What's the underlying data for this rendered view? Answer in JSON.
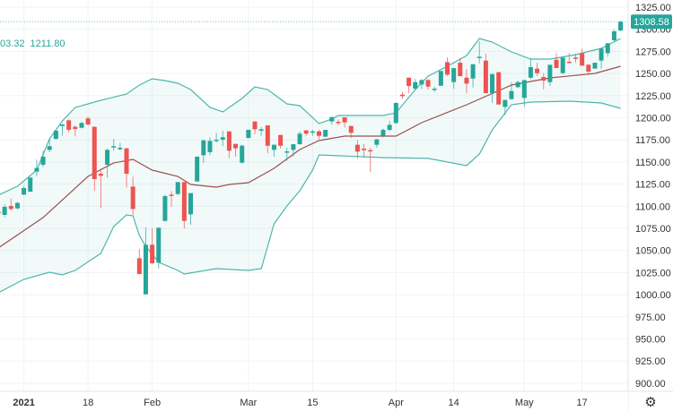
{
  "legend": {
    "value_a": "03.32",
    "value_b": "1211.80"
  },
  "settings_icon": "gear-icon",
  "chart_data": {
    "type": "candlestick",
    "colors": {
      "up": "#26a69a",
      "down": "#ef5350",
      "band": "#4db6ac",
      "band_fill": "#26a69a",
      "basis": "#9c4f4f",
      "last_price": "#26a69a"
    },
    "ylim": [
      890,
      1335
    ],
    "y_ticks": [
      900,
      925,
      950,
      975,
      1000,
      1025,
      1050,
      1075,
      1100,
      1125,
      1150,
      1175,
      1200,
      1225,
      1250,
      1275,
      1300,
      1325
    ],
    "x_ticks": [
      {
        "label": "2021",
        "bar": 4,
        "bold": true
      },
      {
        "label": "18",
        "bar": 14
      },
      {
        "label": "Feb",
        "bar": 24
      },
      {
        "label": "Mar",
        "bar": 39
      },
      {
        "label": "15",
        "bar": 49
      },
      {
        "label": "Apr",
        "bar": 62
      },
      {
        "label": "14",
        "bar": 71
      },
      {
        "label": "May",
        "bar": 82
      },
      {
        "label": "17",
        "bar": 91
      }
    ],
    "last_price": "1308.58",
    "last_price_value": 1308.58,
    "grid": true,
    "ohlc": [
      [
        1094.2,
        1096,
        1090,
        1091.5
      ],
      [
        1090.2,
        1102,
        1087.5,
        1099.3
      ],
      [
        1100.3,
        1108.7,
        1095.2,
        1096.9
      ],
      [
        1097.6,
        1105,
        1096.2,
        1103.7
      ],
      [
        1113.1,
        1123,
        1112.4,
        1120.5
      ],
      [
        1116.5,
        1133.4,
        1116,
        1132.3
      ],
      [
        1139.1,
        1152.6,
        1134,
        1143.2
      ],
      [
        1146.9,
        1162.7,
        1144.2,
        1156
      ],
      [
        1163.7,
        1176.2,
        1161,
        1167.8
      ],
      [
        1176.2,
        1186.3,
        1175.2,
        1185.3
      ],
      [
        1190.7,
        1193.1,
        1179.6,
        1192.4
      ],
      [
        1197.1,
        1198.2,
        1183,
        1186.3
      ],
      [
        1189.7,
        1191.4,
        1178.9,
        1187.3
      ],
      [
        1188.7,
        1195.4,
        1188,
        1194.1
      ],
      [
        1199.2,
        1201.5,
        1191.4,
        1192.4
      ],
      [
        1189.7,
        1190.4,
        1117.2,
        1130.7
      ],
      [
        1136.7,
        1142.5,
        1097.6,
        1134.4
      ],
      [
        1146.9,
        1165,
        1132.3,
        1163.7
      ],
      [
        1166.8,
        1176.2,
        1162.7,
        1167.8
      ],
      [
        1164.4,
        1171.8,
        1162.7,
        1166.1
      ],
      [
        1165.4,
        1166,
        1121.2,
        1136.7
      ],
      [
        1122.2,
        1133.4,
        1090.2,
        1096.9
      ],
      [
        1041.2,
        1051.4,
        1023,
        1023.4
      ],
      [
        1000.4,
        1076,
        1000.4,
        1056.4
      ],
      [
        1056.4,
        1075,
        1034.5,
        1035.5
      ],
      [
        1036.2,
        1075.7,
        1029.4,
        1075.7
      ],
      [
        1083.4,
        1113,
        1082.4,
        1111.4
      ],
      [
        1113.1,
        1117.2,
        1099.3,
        1111.8
      ],
      [
        1113.8,
        1127.3,
        1112.1,
        1127.3
      ],
      [
        1127.3,
        1127.3,
        1075,
        1083.4
      ],
      [
        1090.8,
        1114.8,
        1079,
        1114.8
      ],
      [
        1128,
        1156,
        1127.3,
        1156
      ],
      [
        1157.6,
        1175,
        1148.9,
        1174.5
      ],
      [
        1161,
        1177.9,
        1157.6,
        1173.8
      ],
      [
        1173.8,
        1183,
        1172,
        1175.2
      ],
      [
        1175.2,
        1185.3,
        1167.8,
        1177.9
      ],
      [
        1184.6,
        1184.6,
        1154.3,
        1162.7
      ],
      [
        1170.5,
        1170.5,
        1156,
        1165.4
      ],
      [
        1149.2,
        1169.5,
        1148.2,
        1168.5
      ],
      [
        1177.2,
        1186.3,
        1176.5,
        1186.3
      ],
      [
        1195.8,
        1195.8,
        1181.3,
        1187
      ],
      [
        1185.3,
        1189.7,
        1179.6,
        1187
      ],
      [
        1191.4,
        1191.4,
        1160,
        1168.4
      ],
      [
        1163.7,
        1169.5,
        1156,
        1169.5
      ],
      [
        1180.6,
        1180.6,
        1165.1,
        1168.4
      ],
      [
        1161,
        1166.1,
        1151.6,
        1162
      ],
      [
        1163.7,
        1170.1,
        1156,
        1170.1
      ],
      [
        1170.1,
        1184.6,
        1169.5,
        1182
      ],
      [
        1185.7,
        1186.3,
        1179.6,
        1182
      ],
      [
        1183.6,
        1186.3,
        1179.6,
        1184.6
      ],
      [
        1184.6,
        1186.3,
        1175.5,
        1179.6
      ],
      [
        1178.6,
        1186.3,
        1177.9,
        1186.3
      ],
      [
        1195.8,
        1200.8,
        1192,
        1200.8
      ],
      [
        1195.4,
        1198.1,
        1191.4,
        1193.8
      ],
      [
        1200.5,
        1200.5,
        1189,
        1194.8
      ],
      [
        1190.7,
        1190.7,
        1177.2,
        1183
      ],
      [
        1169.5,
        1174.5,
        1153.6,
        1161.7
      ],
      [
        1165.1,
        1170.5,
        1155,
        1163.4
      ],
      [
        1163.4,
        1166.1,
        1138.4,
        1162
      ],
      [
        1169.5,
        1176.2,
        1166.1,
        1175.5
      ],
      [
        1179.6,
        1188,
        1177.9,
        1186.3
      ],
      [
        1186.3,
        1196.4,
        1184.6,
        1192
      ],
      [
        1194.1,
        1217.7,
        1193.1,
        1216.7
      ],
      [
        1226.1,
        1229.1,
        1221.7,
        1224.4
      ],
      [
        1245.3,
        1245.3,
        1227.8,
        1235.9
      ],
      [
        1232.9,
        1243.7,
        1230.8,
        1240.3
      ],
      [
        1237.6,
        1243.7,
        1232.5,
        1242.6
      ],
      [
        1242.6,
        1243.7,
        1231.8,
        1235.2
      ],
      [
        1231.9,
        1235.2,
        1229.1,
        1232.9
      ],
      [
        1236.2,
        1252.8,
        1235.9,
        1252.8
      ],
      [
        1262.9,
        1268.3,
        1247,
        1248.7
      ],
      [
        1240.3,
        1256.1,
        1232.9,
        1256.1
      ],
      [
        1262.2,
        1267.9,
        1247,
        1247
      ],
      [
        1245.3,
        1254.8,
        1227.8,
        1238.6
      ],
      [
        1244.3,
        1260.5,
        1234.2,
        1260.5
      ],
      [
        1268,
        1286.5,
        1261.5,
        1269
      ],
      [
        1264.6,
        1272.3,
        1227.8,
        1227.8
      ],
      [
        1227.8,
        1249.4,
        1216.7,
        1249.4
      ],
      [
        1251.4,
        1252.1,
        1215,
        1215
      ],
      [
        1212.3,
        1220.1,
        1203.2,
        1220.1
      ],
      [
        1221.1,
        1240.3,
        1220.1,
        1230.2
      ],
      [
        1234.6,
        1242,
        1233.5,
        1240.3
      ],
      [
        1222.4,
        1242.6,
        1212.3,
        1242.6
      ],
      [
        1245.3,
        1267.3,
        1243.7,
        1257.2
      ],
      [
        1255.5,
        1262.2,
        1247,
        1250.4
      ],
      [
        1246,
        1250.4,
        1231.9,
        1242
      ],
      [
        1240.3,
        1259.9,
        1235.9,
        1259.9
      ],
      [
        1265.6,
        1273,
        1256.2,
        1256.2
      ],
      [
        1250.4,
        1268,
        1249.4,
        1268
      ],
      [
        1263.3,
        1273,
        1262.2,
        1262.2
      ],
      [
        1268,
        1272.3,
        1262.2,
        1267.3
      ],
      [
        1273,
        1278.1,
        1258.9,
        1258.9
      ],
      [
        1259.9,
        1260.5,
        1248.7,
        1252.1
      ],
      [
        1255.5,
        1262.2,
        1255.5,
        1262.2
      ],
      [
        1264.6,
        1279.1,
        1255.5,
        1278.1
      ],
      [
        1273,
        1284.2,
        1269,
        1284.2
      ],
      [
        1287.5,
        1300,
        1286.5,
        1297.7
      ],
      [
        1298.7,
        1309.5,
        1297.7,
        1308.58
      ]
    ],
    "bollinger": {
      "upper": [
        [
          0,
          1112.4
        ],
        [
          3,
          1122.6
        ],
        [
          6,
          1140.8
        ],
        [
          8,
          1176.2
        ],
        [
          10,
          1196.5
        ],
        [
          12,
          1211.6
        ],
        [
          16,
          1219.7
        ],
        [
          20,
          1226.8
        ],
        [
          22,
          1236.9
        ],
        [
          24,
          1244
        ],
        [
          26,
          1242
        ],
        [
          28,
          1239
        ],
        [
          30,
          1231.9
        ],
        [
          33,
          1211.6
        ],
        [
          35,
          1206.6
        ],
        [
          38,
          1221.8
        ],
        [
          40,
          1234.9
        ],
        [
          42,
          1231.9
        ],
        [
          45,
          1215.7
        ],
        [
          47,
          1213.7
        ],
        [
          50,
          1193.4
        ],
        [
          52,
          1198.5
        ],
        [
          53,
          1202.5
        ],
        [
          60,
          1202.5
        ],
        [
          62,
          1205.6
        ],
        [
          65,
          1231.9
        ],
        [
          67,
          1247.1
        ],
        [
          70,
          1258.2
        ],
        [
          73,
          1270.3
        ],
        [
          75,
          1289.6
        ],
        [
          77,
          1285.5
        ],
        [
          80,
          1274.4
        ],
        [
          83,
          1266.3
        ],
        [
          86,
          1266.3
        ],
        [
          90,
          1271.4
        ],
        [
          94,
          1278.4
        ],
        [
          97,
          1289.6
        ]
      ],
      "basis": [
        [
          0,
          1052.7
        ],
        [
          7,
          1087.2
        ],
        [
          14,
          1133.7
        ],
        [
          18,
          1148.9
        ],
        [
          21,
          1152.9
        ],
        [
          24,
          1140.8
        ],
        [
          28,
          1133.7
        ],
        [
          30,
          1124.6
        ],
        [
          34,
          1121.6
        ],
        [
          36,
          1124.6
        ],
        [
          39,
          1126.6
        ],
        [
          43,
          1142.8
        ],
        [
          47,
          1164.1
        ],
        [
          50,
          1174.2
        ],
        [
          54,
          1179.3
        ],
        [
          60,
          1179.3
        ],
        [
          62,
          1179.3
        ],
        [
          66,
          1194.4
        ],
        [
          73,
          1214.7
        ],
        [
          80,
          1236.9
        ],
        [
          86,
          1245
        ],
        [
          93,
          1250.1
        ],
        [
          97,
          1258.2
        ]
      ],
      "lower": [
        [
          0,
          1002.1
        ],
        [
          4,
          1017.3
        ],
        [
          8,
          1025.4
        ],
        [
          10,
          1022.4
        ],
        [
          12,
          1027.4
        ],
        [
          16,
          1046.7
        ],
        [
          18,
          1077
        ],
        [
          20,
          1090.2
        ],
        [
          21,
          1089.2
        ],
        [
          22,
          1066.9
        ],
        [
          23,
          1054.8
        ],
        [
          25,
          1036.6
        ],
        [
          28,
          1027.4
        ],
        [
          29,
          1023.4
        ],
        [
          34,
          1029.5
        ],
        [
          39,
          1027.4
        ],
        [
          41,
          1029.5
        ],
        [
          43,
          1080.1
        ],
        [
          45,
          1100.3
        ],
        [
          47,
          1117.5
        ],
        [
          49,
          1140.8
        ],
        [
          50,
          1158
        ],
        [
          60,
          1155
        ],
        [
          67,
          1154
        ],
        [
          73,
          1145.9
        ],
        [
          75,
          1159
        ],
        [
          77,
          1186.3
        ],
        [
          80,
          1214.7
        ],
        [
          83,
          1217.7
        ],
        [
          89,
          1218.7
        ],
        [
          94,
          1216.7
        ],
        [
          97,
          1210.6
        ]
      ]
    }
  }
}
